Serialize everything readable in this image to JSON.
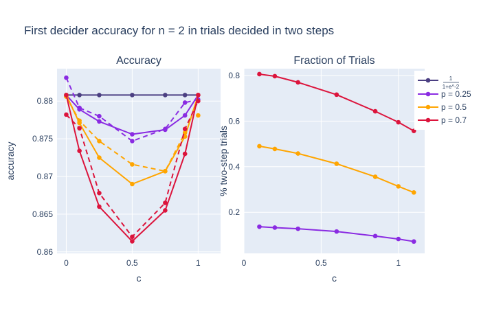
{
  "figure": {
    "title": "First decider accuracy for n = 2 in trials decided in two steps"
  },
  "colors": {
    "plot_bg": "#e5ecf6",
    "grid": "#ffffff",
    "text": "#2a3f5f",
    "series": [
      "#4b3f82",
      "#8a2be2",
      "#ffa500",
      "#dc143c"
    ]
  },
  "legend": {
    "position": "top-right",
    "entries": [
      {
        "fraction_numerator": "1",
        "fraction_denominator": "1+e^-2",
        "color": "#4b3f82"
      },
      {
        "label": "p = 0.25",
        "color": "#8a2be2"
      },
      {
        "label": "p = 0.5",
        "color": "#ffa500"
      },
      {
        "label": "p = 0.7",
        "color": "#dc143c"
      }
    ]
  },
  "chart_data": [
    {
      "type": "line",
      "title": "Accuracy",
      "xlabel": "c",
      "ylabel": "accuracy",
      "xlim": [
        -0.07,
        1.17
      ],
      "ylim": [
        0.8598,
        0.8843
      ],
      "x_ticks": [
        "0",
        "0.5",
        "1"
      ],
      "y_ticks": [
        "0.86",
        "0.865",
        "0.87",
        "0.875",
        "0.88"
      ],
      "grid": true,
      "series": [
        {
          "color": "#4b3f82",
          "dash": "solid",
          "x": [
            0,
            0.1,
            0.25,
            0.5,
            0.75,
            0.9,
            1
          ],
          "y": [
            0.8808,
            0.8808,
            0.8808,
            0.8808,
            0.8808,
            0.8808,
            0.8808
          ]
        },
        {
          "color": "#8a2be2",
          "dash": "solid",
          "x": [
            0,
            0.1,
            0.25,
            0.5,
            0.75,
            0.9,
            1
          ],
          "y": [
            0.8808,
            0.8789,
            0.8773,
            0.8756,
            0.8762,
            0.8781,
            0.8808
          ]
        },
        {
          "color": "#8a2be2",
          "dash": "dash",
          "x": [
            0,
            0.1,
            0.25,
            0.5,
            0.75,
            0.9,
            1
          ],
          "y": [
            0.8831,
            0.8791,
            0.878,
            0.8747,
            0.8763,
            0.8798,
            0.8802
          ]
        },
        {
          "color": "#ffa500",
          "dash": "solid",
          "x": [
            0,
            0.1,
            0.25,
            0.5,
            0.75,
            0.9,
            1
          ],
          "y": [
            0.8808,
            0.8771,
            0.8725,
            0.869,
            0.8707,
            0.8753,
            0.8808
          ]
        },
        {
          "color": "#ffa500",
          "dash": "dash",
          "x": [
            0,
            0.1,
            0.25,
            0.5,
            0.75,
            0.9
          ],
          "y": [
            0.8806,
            0.8774,
            0.8747,
            0.8716,
            0.8707,
            0.8758
          ]
        },
        {
          "color": "#ffa500",
          "dash": "solid",
          "x": [
            1
          ],
          "y": [
            0.8781
          ],
          "markers_only": true
        },
        {
          "color": "#dc143c",
          "dash": "solid",
          "x": [
            0,
            0.1,
            0.25,
            0.5,
            0.75,
            0.9,
            1
          ],
          "y": [
            0.8808,
            0.8734,
            0.866,
            0.8614,
            0.8655,
            0.873,
            0.8808
          ]
        },
        {
          "color": "#dc143c",
          "dash": "dash",
          "x": [
            0,
            0.1,
            0.25,
            0.5,
            0.75,
            0.9,
            1
          ],
          "y": [
            0.8782,
            0.8764,
            0.8678,
            0.862,
            0.8665,
            0.8763,
            0.88
          ]
        }
      ]
    },
    {
      "type": "line",
      "title": "Fraction of Trials",
      "xlabel": "c",
      "ylabel": "% two-step trials",
      "xlim": [
        0,
        1.17
      ],
      "ylim": [
        0.02,
        0.83
      ],
      "x_ticks": [
        "0",
        "0.5",
        "1"
      ],
      "y_ticks": [
        "0.2",
        "0.4",
        "0.6",
        "0.8"
      ],
      "grid": true,
      "series": [
        {
          "color": "#dc143c",
          "x": [
            0.1,
            0.2,
            0.35,
            0.6,
            0.85,
            1,
            1.1
          ],
          "y": [
            0.806,
            0.797,
            0.77,
            0.716,
            0.643,
            0.595,
            0.557
          ]
        },
        {
          "color": "#ffa500",
          "x": [
            0.1,
            0.2,
            0.35,
            0.6,
            0.85,
            1,
            1.1
          ],
          "y": [
            0.49,
            0.478,
            0.458,
            0.413,
            0.356,
            0.314,
            0.287
          ]
        },
        {
          "color": "#8a2be2",
          "x": [
            0.1,
            0.2,
            0.35,
            0.6,
            0.85,
            1,
            1.1
          ],
          "y": [
            0.137,
            0.133,
            0.128,
            0.116,
            0.096,
            0.083,
            0.072
          ]
        }
      ]
    }
  ]
}
